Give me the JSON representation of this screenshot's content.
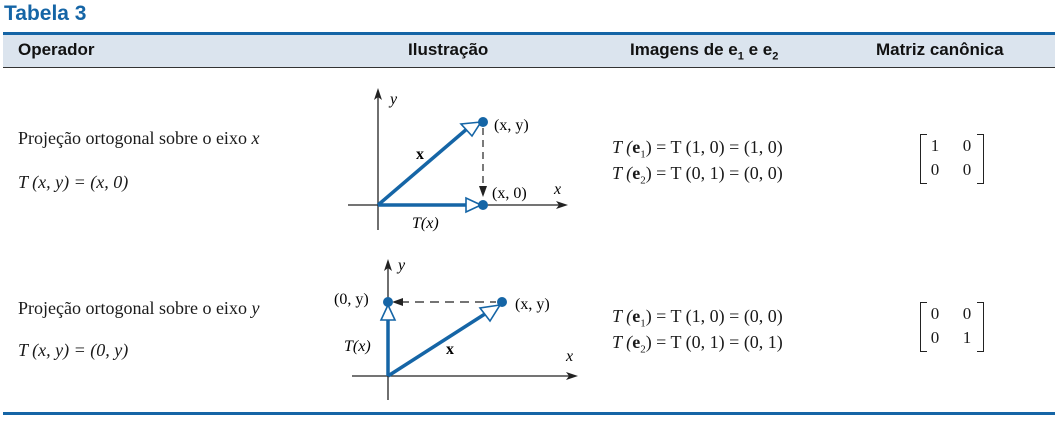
{
  "table": {
    "title": "Tabela 3",
    "headers": {
      "operator": "Operador",
      "illustration": "Ilustração",
      "images_prefix": "Imagens de e",
      "images_sub1": "1",
      "images_mid": " e e",
      "images_sub2": "2",
      "matrix": "Matriz canônica"
    },
    "rows": [
      {
        "name_prefix": "Projeção ortogonal sobre o eixo ",
        "axis": "x",
        "formula": "T (x, y) = (x, 0)",
        "illustration": {
          "y_label": "y",
          "x_label": "x",
          "point_label": "(x, y)",
          "image_label": "(x, 0)",
          "vector_label": "x",
          "image_vector_label": "T(x)"
        },
        "image_e1": {
          "left": "T (",
          "vec": "e",
          "sub": "1",
          "right": ") = T (1, 0) = (1, 0)"
        },
        "image_e2": {
          "left": "T (",
          "vec": "e",
          "sub": "2",
          "right": ") = T (0, 1) = (0, 0)"
        },
        "matrix": [
          [
            "1",
            "0"
          ],
          [
            "0",
            "0"
          ]
        ]
      },
      {
        "name_prefix": "Projeção ortogonal sobre o eixo ",
        "axis": "y",
        "formula": "T (x, y) = (0, y)",
        "illustration": {
          "y_label": "y",
          "x_label": "x",
          "point_label": "(x, y)",
          "image_label": "(0, y)",
          "vector_label": "x",
          "image_vector_label": "T(x)"
        },
        "image_e1": {
          "left": "T (",
          "vec": "e",
          "sub": "1",
          "right": ") = T (1, 0) = (0, 0)"
        },
        "image_e2": {
          "left": "T (",
          "vec": "e",
          "sub": "2",
          "right": ") = T (0, 1) = (0, 1)"
        },
        "matrix": [
          [
            "0",
            "0"
          ],
          [
            "0",
            "1"
          ]
        ]
      }
    ]
  },
  "colors": {
    "accent": "#1565a6",
    "header_band": "#dbe4ee",
    "vector": "#1565a6"
  }
}
